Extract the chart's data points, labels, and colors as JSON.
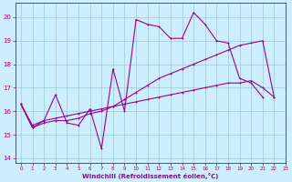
{
  "title": "",
  "xlabel": "Windchill (Refroidissement éolien,°C)",
  "bg_color": "#cceeff",
  "line_color": "#990099",
  "grid_color": "#99cccc",
  "ylim": [
    13.8,
    20.6
  ],
  "xlim": [
    -0.5,
    23
  ],
  "yticks": [
    14,
    15,
    16,
    17,
    18,
    19,
    20
  ],
  "xticks": [
    0,
    1,
    2,
    3,
    4,
    5,
    6,
    7,
    8,
    9,
    10,
    11,
    12,
    13,
    14,
    15,
    16,
    17,
    18,
    19,
    20,
    21,
    22,
    23
  ],
  "s1_x": [
    0,
    1,
    2,
    3,
    4,
    5,
    6,
    7,
    8,
    9,
    10,
    11,
    12,
    13,
    14,
    15,
    16,
    17,
    18,
    19,
    20,
    21
  ],
  "s1_y": [
    16.3,
    15.3,
    15.6,
    16.7,
    15.5,
    15.4,
    16.1,
    14.4,
    17.8,
    16.0,
    19.9,
    19.7,
    19.6,
    19.1,
    19.1,
    20.2,
    19.7,
    19.0,
    18.9,
    17.4,
    17.2,
    16.6
  ],
  "s2_x": [
    0,
    1,
    2,
    3,
    4,
    5,
    6,
    7,
    8,
    9,
    10,
    11,
    12,
    13,
    14,
    15,
    16,
    17,
    18,
    19,
    20,
    21,
    22
  ],
  "s2_y": [
    16.3,
    15.3,
    15.5,
    15.6,
    15.6,
    15.7,
    15.9,
    16.0,
    16.2,
    16.5,
    16.8,
    17.1,
    17.4,
    17.6,
    17.8,
    18.0,
    18.2,
    18.4,
    18.6,
    18.8,
    18.9,
    19.0,
    16.6
  ],
  "s3_x": [
    0,
    1,
    2,
    3,
    4,
    5,
    6,
    7,
    8,
    9,
    10,
    11,
    12,
    13,
    14,
    15,
    16,
    17,
    18,
    19,
    20,
    21,
    22
  ],
  "s3_y": [
    16.3,
    15.4,
    15.6,
    15.7,
    15.8,
    15.9,
    16.0,
    16.1,
    16.2,
    16.3,
    16.4,
    16.5,
    16.6,
    16.7,
    16.8,
    16.9,
    17.0,
    17.1,
    17.2,
    17.2,
    17.3,
    17.0,
    16.6
  ]
}
